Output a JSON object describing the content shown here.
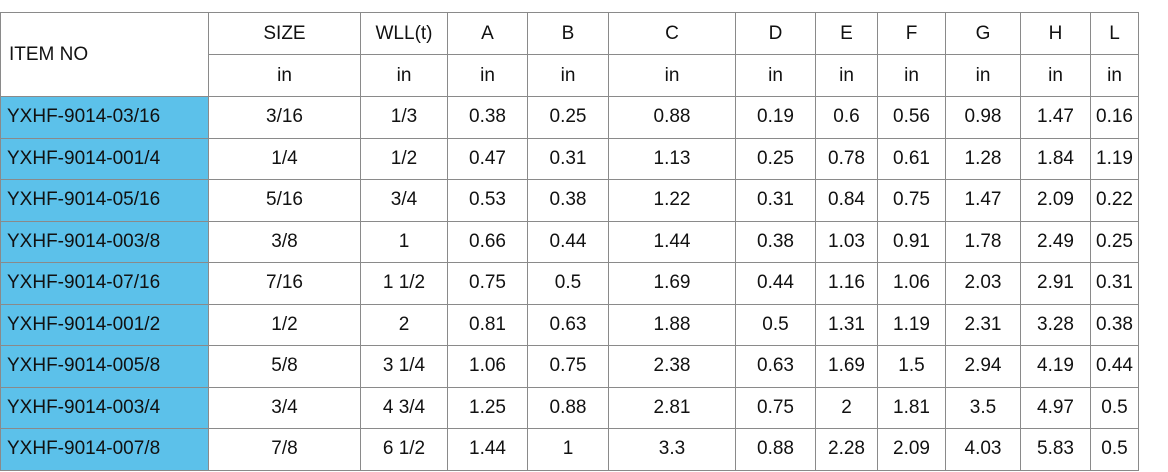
{
  "table": {
    "columns": [
      "ITEM NO",
      "SIZE",
      "WLL(t)",
      "A",
      "B",
      "C",
      "D",
      "E",
      "F",
      "G",
      "H",
      "L"
    ],
    "units": [
      "in",
      "in",
      "in",
      "in",
      "in",
      "in",
      "in",
      "in",
      "in",
      "in",
      "in"
    ],
    "rows": [
      [
        "YXHF-9014-03/16",
        "3/16",
        "1/3",
        "0.38",
        "0.25",
        "0.88",
        "0.19",
        "0.6",
        "0.56",
        "0.98",
        "1.47",
        "0.16"
      ],
      [
        "YXHF-9014-001/4",
        "1/4",
        "1/2",
        "0.47",
        "0.31",
        "1.13",
        "0.25",
        "0.78",
        "0.61",
        "1.28",
        "1.84",
        "1.19"
      ],
      [
        "YXHF-9014-05/16",
        "5/16",
        "3/4",
        "0.53",
        "0.38",
        "1.22",
        "0.31",
        "0.84",
        "0.75",
        "1.47",
        "2.09",
        "0.22"
      ],
      [
        "YXHF-9014-003/8",
        "3/8",
        "1",
        "0.66",
        "0.44",
        "1.44",
        "0.38",
        "1.03",
        "0.91",
        "1.78",
        "2.49",
        "0.25"
      ],
      [
        "YXHF-9014-07/16",
        "7/16",
        "1 1/2",
        "0.75",
        "0.5",
        "1.69",
        "0.44",
        "1.16",
        "1.06",
        "2.03",
        "2.91",
        "0.31"
      ],
      [
        "YXHF-9014-001/2",
        "1/2",
        "2",
        "0.81",
        "0.63",
        "1.88",
        "0.5",
        "1.31",
        "1.19",
        "2.31",
        "3.28",
        "0.38"
      ],
      [
        "YXHF-9014-005/8",
        "5/8",
        "3 1/4",
        "1.06",
        "0.75",
        "2.38",
        "0.63",
        "1.69",
        "1.5",
        "2.94",
        "4.19",
        "0.44"
      ],
      [
        "YXHF-9014-003/4",
        "3/4",
        "4 3/4",
        "1.25",
        "0.88",
        "2.81",
        "0.75",
        "2",
        "1.81",
        "3.5",
        "4.97",
        "0.5"
      ],
      [
        "YXHF-9014-007/8",
        "7/8",
        "6 1/2",
        "1.44",
        "1",
        "3.3",
        "0.88",
        "2.28",
        "2.09",
        "4.03",
        "5.83",
        "0.5"
      ]
    ]
  }
}
